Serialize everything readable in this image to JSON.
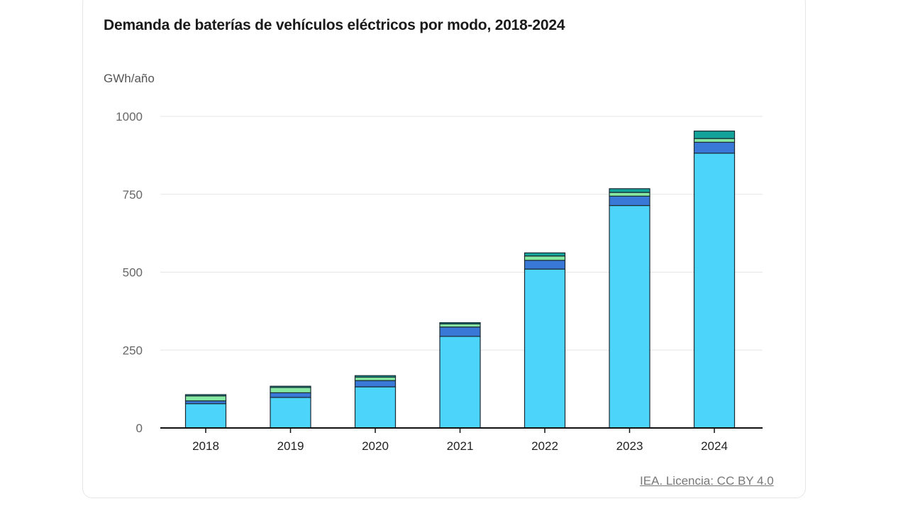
{
  "title": "Demanda de baterías de vehículos eléctricos por modo, 2018-2024",
  "unit_label": "GWh/año",
  "source": "IEA. Licencia: CC BY 4.0",
  "colors": {
    "light_blue": "#4dd4fb",
    "blue": "#3a78d8",
    "light_green": "#86e9a2",
    "teal": "#14a39a",
    "grid": "#e5e5e5",
    "axis": "#111111",
    "tick_text_y": "#666666",
    "tick_text_x": "#222222"
  },
  "chart_data": {
    "type": "bar",
    "stacked": true,
    "categories": [
      "2018",
      "2019",
      "2020",
      "2021",
      "2022",
      "2023",
      "2024"
    ],
    "series": [
      {
        "color": "#4dd4fb",
        "values": [
          78,
          98,
          132,
          294,
          510,
          714,
          882
        ]
      },
      {
        "color": "#3a78d8",
        "values": [
          9,
          15,
          20,
          30,
          28,
          30,
          35
        ]
      },
      {
        "color": "#86e9a2",
        "values": [
          16,
          17,
          11,
          10,
          14,
          12,
          12
        ]
      },
      {
        "color": "#14a39a",
        "values": [
          4,
          4,
          5,
          4,
          10,
          12,
          24
        ]
      }
    ],
    "y_ticks": [
      "0",
      "250",
      "500",
      "750",
      "1000"
    ],
    "ylim": [
      0,
      1000
    ],
    "grid": true,
    "legend": "none"
  }
}
